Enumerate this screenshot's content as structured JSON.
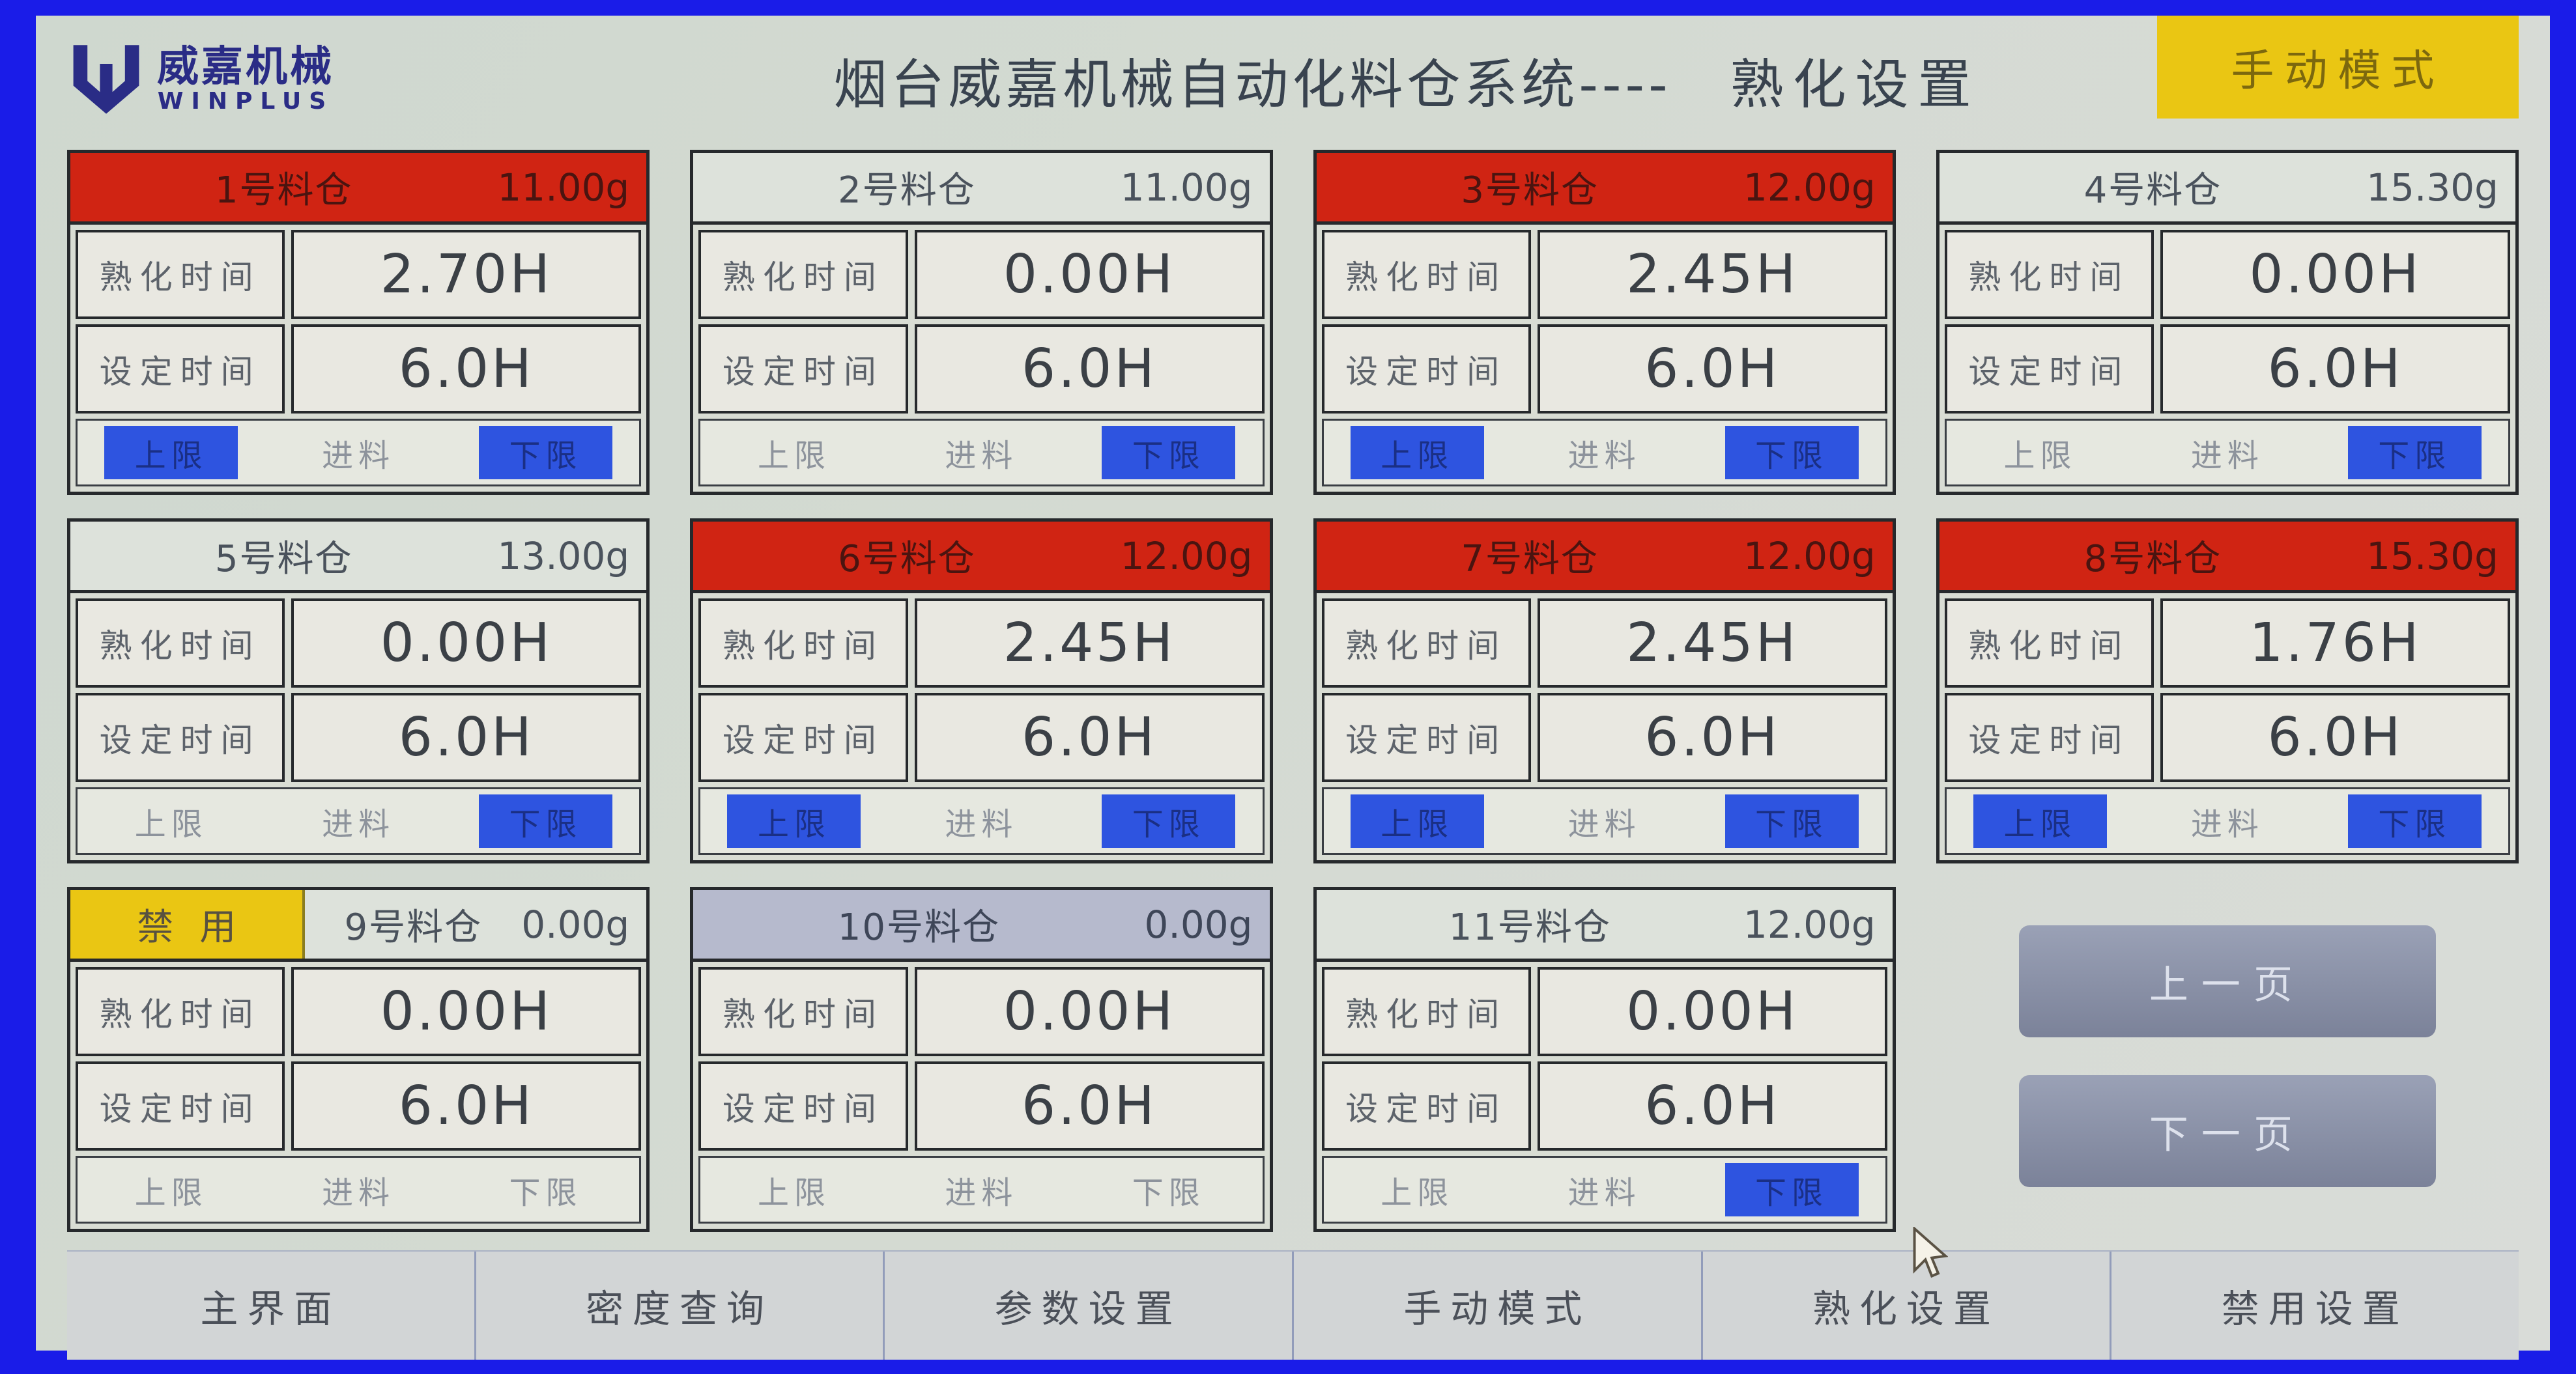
{
  "app": {
    "logo_cn": "威嘉机械",
    "logo_en": "WINPLUS",
    "title_main": "烟台威嘉机械自动化料仓系统----",
    "title_page": "熟化设置",
    "mode_button": "手动模式"
  },
  "labels": {
    "curing_time": "熟化时间",
    "set_time": "设定时间",
    "upper": "上限",
    "feed": "进料",
    "lower": "下限",
    "disabled": "禁用"
  },
  "silos": [
    {
      "name": "1号料仓",
      "weight": "11.00g",
      "curing_time": "2.70H",
      "set_time": "6.0H",
      "header": "red",
      "disabled": false,
      "upper_on": true,
      "feed_on": false,
      "lower_on": true
    },
    {
      "name": "2号料仓",
      "weight": "11.00g",
      "curing_time": "0.00H",
      "set_time": "6.0H",
      "header": "light",
      "disabled": false,
      "upper_on": false,
      "feed_on": false,
      "lower_on": true
    },
    {
      "name": "3号料仓",
      "weight": "12.00g",
      "curing_time": "2.45H",
      "set_time": "6.0H",
      "header": "red",
      "disabled": false,
      "upper_on": true,
      "feed_on": false,
      "lower_on": true
    },
    {
      "name": "4号料仓",
      "weight": "15.30g",
      "curing_time": "0.00H",
      "set_time": "6.0H",
      "header": "light",
      "disabled": false,
      "upper_on": false,
      "feed_on": false,
      "lower_on": true
    },
    {
      "name": "5号料仓",
      "weight": "13.00g",
      "curing_time": "0.00H",
      "set_time": "6.0H",
      "header": "light",
      "disabled": false,
      "upper_on": false,
      "feed_on": false,
      "lower_on": true
    },
    {
      "name": "6号料仓",
      "weight": "12.00g",
      "curing_time": "2.45H",
      "set_time": "6.0H",
      "header": "red",
      "disabled": false,
      "upper_on": true,
      "feed_on": false,
      "lower_on": true
    },
    {
      "name": "7号料仓",
      "weight": "12.00g",
      "curing_time": "2.45H",
      "set_time": "6.0H",
      "header": "red",
      "disabled": false,
      "upper_on": true,
      "feed_on": false,
      "lower_on": true
    },
    {
      "name": "8号料仓",
      "weight": "15.30g",
      "curing_time": "1.76H",
      "set_time": "6.0H",
      "header": "red",
      "disabled": false,
      "upper_on": true,
      "feed_on": false,
      "lower_on": true
    },
    {
      "name": "9号料仓",
      "weight": "0.00g",
      "curing_time": "0.00H",
      "set_time": "6.0H",
      "header": "light",
      "disabled": true,
      "upper_on": false,
      "feed_on": false,
      "lower_on": false
    },
    {
      "name": "10号料仓",
      "weight": "0.00g",
      "curing_time": "0.00H",
      "set_time": "6.0H",
      "header": "bluegray",
      "disabled": false,
      "upper_on": false,
      "feed_on": false,
      "lower_on": false
    },
    {
      "name": "11号料仓",
      "weight": "12.00g",
      "curing_time": "0.00H",
      "set_time": "6.0H",
      "header": "light",
      "disabled": false,
      "upper_on": false,
      "feed_on": false,
      "lower_on": true
    }
  ],
  "pager": {
    "prev": "上一页",
    "next": "下一页"
  },
  "nav": [
    "主界面",
    "密度查询",
    "参数设置",
    "手动模式",
    "熟化设置",
    "禁用设置"
  ],
  "cursor_over_nav_index": 4,
  "colors": {
    "border_blue": "#1a1ce8",
    "header_red": "#d02413",
    "indicator_blue": "#2e54e0",
    "disabled_yellow": "#eac613",
    "pager_gray": "#868da3"
  }
}
